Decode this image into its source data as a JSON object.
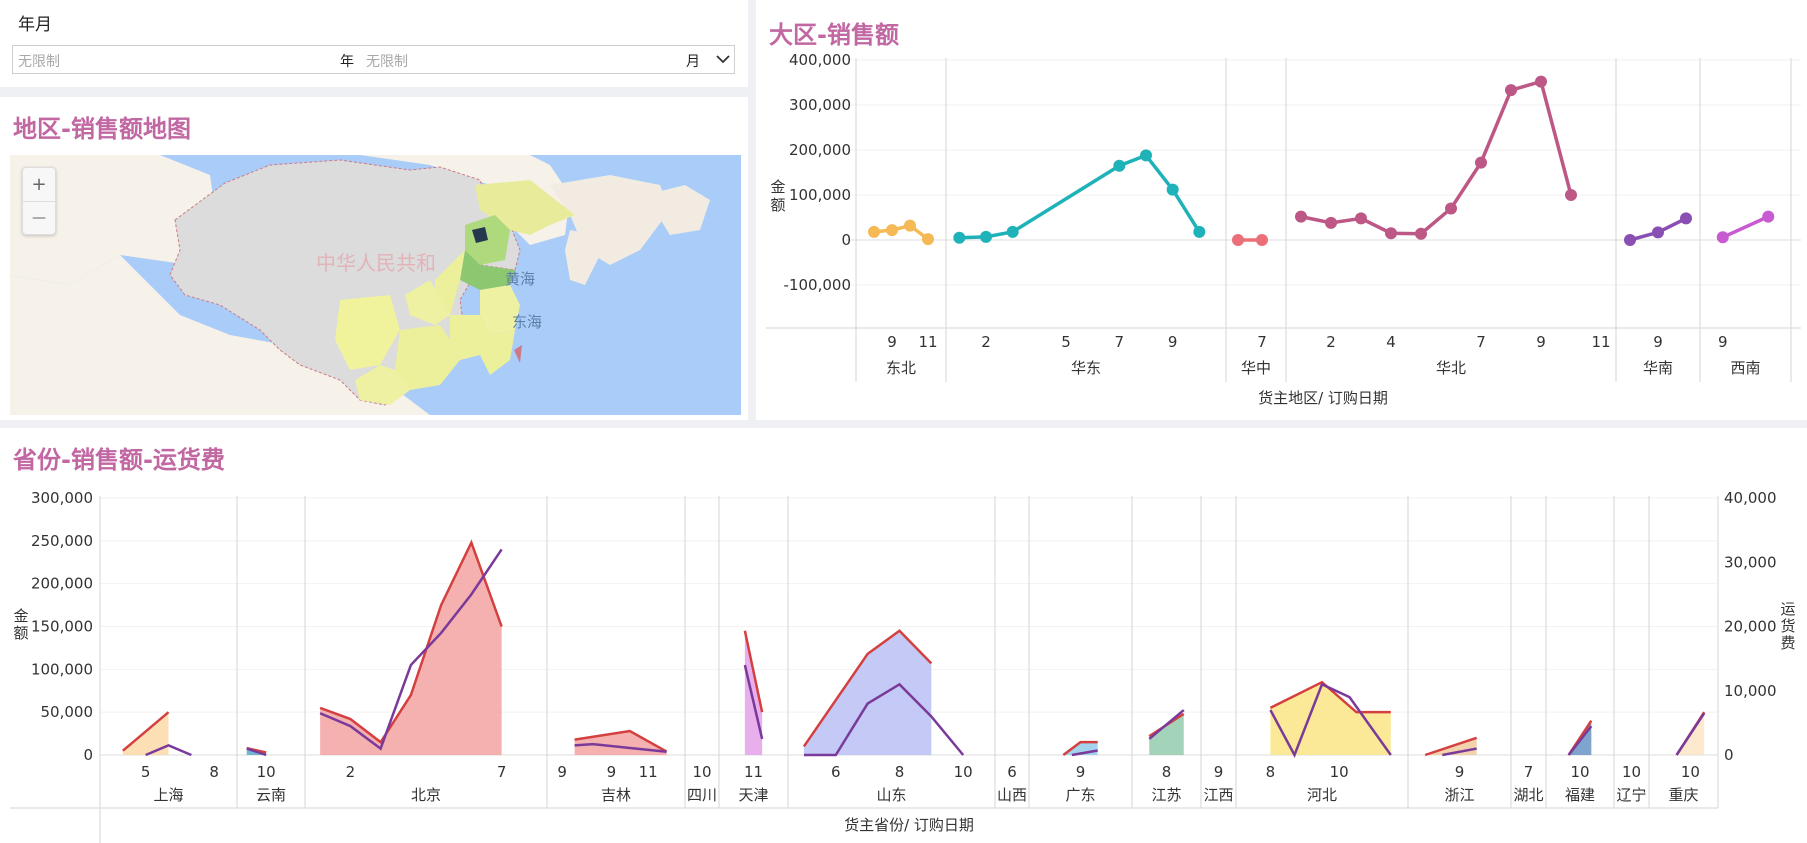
{
  "filter": {
    "label": "年月",
    "start_placeholder": "无限制",
    "start_unit": "年",
    "end_placeholder": "无限制",
    "end_unit": "月"
  },
  "map_panel": {
    "title": "地区-销售额地图",
    "labels": [
      "中华人民共和",
      "黄海",
      "东海"
    ],
    "zoom_in": "+",
    "zoom_out": "—"
  },
  "region_panel": {
    "title": "大区-销售额",
    "chart_data": {
      "type": "line",
      "ylabel": "金额",
      "xlabel": "货主地区/ 订购日期",
      "ylim": [
        -100000,
        400000
      ],
      "yticks": [
        -100000,
        0,
        100000,
        200000,
        300000,
        400000
      ],
      "ytick_labels": [
        "-100,000",
        "0",
        "100,000",
        "200,000",
        "300,000",
        "400,000"
      ],
      "grid": true,
      "groups": [
        {
          "name": "东北",
          "color": "#f5b955",
          "points": [
            {
              "x": 8,
              "y": 18000
            },
            {
              "x": 9,
              "y": 22000
            },
            {
              "x": 10,
              "y": 32000
            },
            {
              "x": 11,
              "y": 2000
            }
          ],
          "tick_labels": [
            {
              "at": 9,
              "text": "9"
            },
            {
              "at": 11,
              "text": "11"
            }
          ]
        },
        {
          "name": "华东",
          "color": "#1fb2b8",
          "points": [
            {
              "x": 1,
              "y": 5000
            },
            {
              "x": 2,
              "y": 7000
            },
            {
              "x": 3,
              "y": 18000
            },
            {
              "x": 7,
              "y": 165000
            },
            {
              "x": 8,
              "y": 188000
            },
            {
              "x": 9,
              "y": 112000
            },
            {
              "x": 10,
              "y": 18000
            }
          ],
          "tick_labels": [
            {
              "at": 2,
              "text": "2"
            },
            {
              "at": 5,
              "text": "5"
            },
            {
              "at": 7,
              "text": "7"
            },
            {
              "at": 9,
              "text": "9"
            }
          ]
        },
        {
          "name": "华中",
          "color": "#ec6e78",
          "points": [
            {
              "x": 6,
              "y": 0
            },
            {
              "x": 7,
              "y": 0
            }
          ],
          "tick_labels": [
            {
              "at": 7,
              "text": "7"
            }
          ]
        },
        {
          "name": "华北",
          "color": "#bd5886",
          "points": [
            {
              "x": 1,
              "y": 52000
            },
            {
              "x": 2,
              "y": 38000
            },
            {
              "x": 3,
              "y": 48000
            },
            {
              "x": 4,
              "y": 15000
            },
            {
              "x": 5,
              "y": 14000
            },
            {
              "x": 6,
              "y": 70000
            },
            {
              "x": 7,
              "y": 172000
            },
            {
              "x": 8,
              "y": 333000
            },
            {
              "x": 9,
              "y": 352000
            },
            {
              "x": 10,
              "y": 100000
            }
          ],
          "tick_labels": [
            {
              "at": 2,
              "text": "2"
            },
            {
              "at": 4,
              "text": "4"
            },
            {
              "at": 7,
              "text": "7"
            },
            {
              "at": 9,
              "text": "9"
            },
            {
              "at": 11,
              "text": "11"
            }
          ]
        },
        {
          "name": "华南",
          "color": "#8a4fb2",
          "points": [
            {
              "x": 8,
              "y": 0
            },
            {
              "x": 9,
              "y": 17000
            },
            {
              "x": 10,
              "y": 48000
            }
          ],
          "tick_labels": [
            {
              "at": 9,
              "text": "9"
            }
          ]
        },
        {
          "name": "西南",
          "color": "#c85ad2",
          "points": [
            {
              "x": 9,
              "y": 6000
            },
            {
              "x": 10,
              "y": 52000
            }
          ],
          "tick_labels": [
            {
              "at": 9,
              "text": "9"
            }
          ]
        }
      ]
    }
  },
  "province_panel": {
    "title": "省份-销售额-运货费",
    "chart_data": {
      "type": "area",
      "ylabel": "金额",
      "y2label": "运货费",
      "xlabel": "货主省份/ 订购日期",
      "ylim": [
        0,
        300000
      ],
      "yticks": [
        0,
        50000,
        100000,
        150000,
        200000,
        250000,
        300000
      ],
      "ytick_labels": [
        "0",
        "50,000",
        "100,000",
        "150,000",
        "200,000",
        "250,000",
        "300,000"
      ],
      "y2lim": [
        0,
        40000
      ],
      "y2ticks": [
        0,
        10000,
        20000,
        30000,
        40000
      ],
      "y2tick_labels": [
        "0",
        "10,000",
        "20,000",
        "30,000",
        "40,000"
      ],
      "grid": true,
      "series": [
        {
          "role": "sales",
          "color": "#d44040"
        },
        {
          "role": "freight",
          "color": "#7a3a9a"
        }
      ],
      "groups": [
        {
          "name": "上海",
          "fill": "#fcd7a4",
          "sales": [
            {
              "x": 4,
              "y": 5000
            },
            {
              "x": 6,
              "y": 50000
            }
          ],
          "freight": [
            {
              "x": 5,
              "y": 0
            },
            {
              "x": 6,
              "y": 1500
            },
            {
              "x": 7,
              "y": 0
            }
          ],
          "tick_labels": [
            {
              "at": 5,
              "text": "5"
            },
            {
              "at": 8,
              "text": "8"
            }
          ]
        },
        {
          "name": "云南",
          "fill": "#4fa6c8",
          "sales": [
            {
              "x": 9,
              "y": 8000
            },
            {
              "x": 10,
              "y": 3000
            }
          ],
          "freight": [
            {
              "x": 9,
              "y": 1000
            },
            {
              "x": 10,
              "y": 0
            }
          ],
          "tick_labels": [
            {
              "at": 10,
              "text": "10"
            }
          ]
        },
        {
          "name": "北京",
          "fill": "#f29c9c",
          "sales": [
            {
              "x": 1,
              "y": 55000
            },
            {
              "x": 2,
              "y": 42000
            },
            {
              "x": 3,
              "y": 15000
            },
            {
              "x": 4,
              "y": 70000
            },
            {
              "x": 5,
              "y": 175000
            },
            {
              "x": 6,
              "y": 248000
            },
            {
              "x": 7,
              "y": 150000
            }
          ],
          "freight": [
            {
              "x": 1,
              "y": 6500
            },
            {
              "x": 2,
              "y": 4500
            },
            {
              "x": 3,
              "y": 1000
            },
            {
              "x": 4,
              "y": 14000
            },
            {
              "x": 5,
              "y": 19000
            },
            {
              "x": 6,
              "y": 25000
            },
            {
              "x": 7,
              "y": 32000
            }
          ],
          "tick_labels": [
            {
              "at": 2,
              "text": "2"
            },
            {
              "at": 7,
              "text": "7"
            },
            {
              "at": 9,
              "text": "9"
            }
          ]
        },
        {
          "name": "吉林",
          "fill": "#f29c9c",
          "sales": [
            {
              "x": 7,
              "y": 18000
            },
            {
              "x": 10,
              "y": 28000
            },
            {
              "x": 12,
              "y": 4000
            }
          ],
          "freight": [
            {
              "x": 7,
              "y": 1500
            },
            {
              "x": 8,
              "y": 1700
            },
            {
              "x": 12,
              "y": 500
            }
          ],
          "tick_labels": [
            {
              "at": 9,
              "text": "9"
            },
            {
              "at": 11,
              "text": "11"
            }
          ]
        },
        {
          "name": "四川",
          "fill": "#f29c9c",
          "sales": [],
          "freight": [],
          "tick_labels": [
            {
              "at": 10,
              "text": "10"
            }
          ]
        },
        {
          "name": "天津",
          "fill": "#e49be8",
          "sales": [
            {
              "x": 10.5,
              "y": 145000
            },
            {
              "x": 11.5,
              "y": 50000
            }
          ],
          "freight": [
            {
              "x": 10.5,
              "y": 14000
            },
            {
              "x": 11.5,
              "y": 2500
            }
          ],
          "tick_labels": [
            {
              "at": 11,
              "text": "11"
            }
          ]
        },
        {
          "name": "山东",
          "fill": "#b5bdf2",
          "sales": [
            {
              "x": 5,
              "y": 10000
            },
            {
              "x": 7,
              "y": 118000
            },
            {
              "x": 8,
              "y": 145000
            },
            {
              "x": 9,
              "y": 107000
            }
          ],
          "freight": [
            {
              "x": 5,
              "y": 0
            },
            {
              "x": 6,
              "y": 0
            },
            {
              "x": 7,
              "y": 8000
            },
            {
              "x": 8,
              "y": 11000
            },
            {
              "x": 9,
              "y": 6000
            },
            {
              "x": 10,
              "y": 0
            }
          ],
          "tick_labels": [
            {
              "at": 6,
              "text": "6"
            },
            {
              "at": 8,
              "text": "8"
            },
            {
              "at": 10,
              "text": "10"
            }
          ]
        },
        {
          "name": "山西",
          "fill": "#f29c9c",
          "sales": [],
          "freight": [],
          "tick_labels": [
            {
              "at": 6,
              "text": "6"
            }
          ]
        },
        {
          "name": "广东",
          "fill": "#8cc8e8",
          "sales": [
            {
              "x": 8,
              "y": 0
            },
            {
              "x": 9,
              "y": 15000
            },
            {
              "x": 10,
              "y": 15000
            }
          ],
          "freight": [
            {
              "x": 8.5,
              "y": 0
            },
            {
              "x": 10,
              "y": 700
            }
          ],
          "tick_labels": [
            {
              "at": 9,
              "text": "9"
            }
          ]
        },
        {
          "name": "江苏",
          "fill": "#8cc9a8",
          "sales": [
            {
              "x": 7.5,
              "y": 22000
            },
            {
              "x": 8.5,
              "y": 48000
            }
          ],
          "freight": [
            {
              "x": 7.5,
              "y": 2500
            },
            {
              "x": 8.5,
              "y": 7000
            }
          ],
          "tick_labels": [
            {
              "at": 8,
              "text": "8"
            }
          ]
        },
        {
          "name": "江西",
          "fill": "#f29c9c",
          "sales": [],
          "freight": [],
          "tick_labels": [
            {
              "at": 9,
              "text": "9"
            }
          ]
        },
        {
          "name": "河北",
          "fill": "#fbe47e",
          "sales": [
            {
              "x": 8,
              "y": 55000
            },
            {
              "x": 9.5,
              "y": 85000
            },
            {
              "x": 10.5,
              "y": 50000
            },
            {
              "x": 11.5,
              "y": 50000
            }
          ],
          "freight": [
            {
              "x": 8,
              "y": 7000
            },
            {
              "x": 8.7,
              "y": 0
            },
            {
              "x": 9.5,
              "y": 11000
            },
            {
              "x": 10.3,
              "y": 9000
            },
            {
              "x": 11.5,
              "y": 0
            }
          ],
          "tick_labels": [
            {
              "at": 8,
              "text": "8"
            },
            {
              "at": 10,
              "text": "10"
            }
          ]
        },
        {
          "name": "浙江",
          "fill": "#f0c89a",
          "sales": [
            {
              "x": 7,
              "y": 0
            },
            {
              "x": 10,
              "y": 20000
            }
          ],
          "freight": [
            {
              "x": 8,
              "y": 0
            },
            {
              "x": 10,
              "y": 1000
            }
          ],
          "tick_labels": [
            {
              "at": 9,
              "text": "9"
            }
          ]
        },
        {
          "name": "湖北",
          "fill": "#f29c9c",
          "sales": [],
          "freight": [],
          "tick_labels": [
            {
              "at": 7,
              "text": "7"
            }
          ]
        },
        {
          "name": "福建",
          "fill": "#5f8ec2",
          "sales": [
            {
              "x": 9.5,
              "y": 0
            },
            {
              "x": 10.5,
              "y": 40000
            }
          ],
          "freight": [
            {
              "x": 9.5,
              "y": 0
            },
            {
              "x": 10.5,
              "y": 4500
            }
          ],
          "tick_labels": [
            {
              "at": 10,
              "text": "10"
            }
          ]
        },
        {
          "name": "辽宁",
          "fill": "#f29c9c",
          "sales": [],
          "freight": [],
          "tick_labels": [
            {
              "at": 10,
              "text": "10"
            }
          ]
        },
        {
          "name": "重庆",
          "fill": "#fde4c0",
          "sales": [
            {
              "x": 9.5,
              "y": 0
            },
            {
              "x": 10.5,
              "y": 50000
            }
          ],
          "freight": [
            {
              "x": 9.5,
              "y": 0
            },
            {
              "x": 10.5,
              "y": 6500
            }
          ],
          "tick_labels": [
            {
              "at": 10,
              "text": "10"
            }
          ]
        }
      ]
    }
  }
}
